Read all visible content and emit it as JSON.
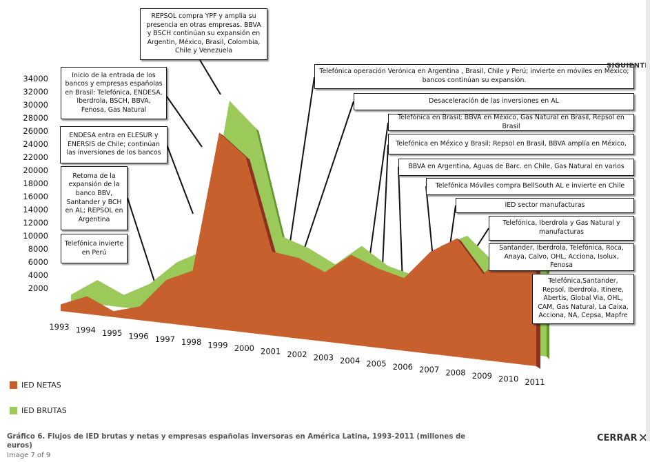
{
  "chart_data": {
    "type": "area",
    "title": "",
    "xlabel": "",
    "ylabel": "",
    "categories": [
      "1993",
      "1994",
      "1995",
      "1996",
      "1997",
      "1998",
      "1999",
      "2000",
      "2001",
      "2002",
      "2003",
      "2004",
      "2005",
      "2006",
      "2007",
      "2008",
      "2009",
      "2010",
      "2011"
    ],
    "series": [
      {
        "name": "IED NETAS",
        "values": [
          1000,
          2700,
          900,
          2100,
          6600,
          8500,
          30000,
          26800,
          12800,
          12300,
          10600,
          13700,
          12100,
          11100,
          15600,
          18100,
          13100,
          17600,
          15200
        ]
      },
      {
        "name": "IED BRUTAS",
        "values": [
          1000,
          3700,
          1900,
          4100,
          7800,
          10000,
          33400,
          29700,
          13600,
          12300,
          10300,
          13600,
          11000,
          10000,
          15000,
          17000,
          13500,
          16600,
          15800
        ]
      }
    ],
    "yticks": [
      2000,
      4000,
      6000,
      8000,
      10000,
      12000,
      14000,
      16000,
      18000,
      20000,
      22000,
      24000,
      26000,
      28000,
      30000,
      32000,
      34000
    ],
    "ylim": [
      0,
      34000
    ],
    "legend_position": "bottom-left"
  },
  "annotations": [
    "REPSOL compra YPF y amplia su presencia en otras empresas. BBVA y BSCH continúan su expansión en Argentin, México, Brasil, Colombia, Chile y Venezuela",
    "Inicio de la entrada de los bancos y empresas españolas en Brasil: Telefónica, ENDESA, Iberdrola, BSCH, BBVA, Fenosa, Gas Natural",
    "ENDESA entra en ELESUR y ENERSIS de Chile; continúan las inversiones de los bancos",
    "Retoma de la expansión de la banco BBV, Santander y BCH en AL; REPSOL en Argentina",
    "Telefónica invierte en Perú",
    "Telefónica operación Verónica en Argentina , Brasil, Chile y Perú; invierte en móviles en México; bancos continúan su expansión.",
    "Desaceleración de las inversiones en AL",
    "Telefónica en Brasil; BBVA en México, Gas Natural en Brasil, Repsol en Brasil",
    "Telefónica en México y Brasil; Repsol en Brasil, BBVA amplía en México,",
    "BBVA en Argentina, Aguas de Barc. en Chile, Gas Natural en varios",
    "Telefónica Móviles compra BellSouth AL e invierte en Chile",
    "IED sector manufacturas",
    "Telefónica, Iberdrola y Gas Natural y manufacturas",
    "Santander, Iberdrola, Telefónica, Roca, Anaya, Calvo, OHL, Acciona, Isolux, Fenosa",
    "Telefónica,Santander, Repsol, Iberdrola, Itinere, Abertis, Global Via, OHL, CAM, Gas Natural, La Caixa, Acciona, NA, Cepsa, Mapfre"
  ],
  "legend": {
    "netas": "IED NETAS",
    "brutas": "IED BRUTAS"
  },
  "colors": {
    "netas": "#c8602e",
    "netas_side": "#8e2f22",
    "brutas": "#9bc95a",
    "brutas_side": "#5f9a2a"
  },
  "nav": {
    "next": "SIGUIENTE",
    "close": "CERRAR",
    "close_icon": "close-icon",
    "counter": "Image 7 of 9"
  },
  "caption": "Gráfico 6. Flujos de IED brutas y netas y empresas españolas inversoras en América Latina, 1993-2011 (millones de euros)"
}
